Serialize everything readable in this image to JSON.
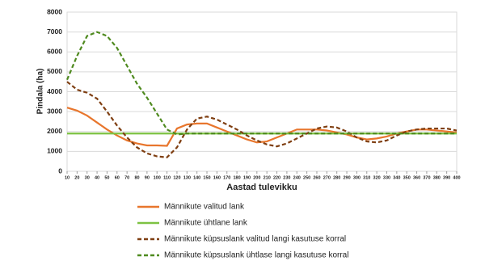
{
  "chart_data": {
    "type": "line",
    "x_label": "Aastad tulevikku",
    "y_label": "Pindala (ha)",
    "x": [
      10,
      20,
      30,
      40,
      50,
      60,
      70,
      80,
      90,
      100,
      110,
      120,
      130,
      140,
      150,
      160,
      170,
      180,
      190,
      200,
      210,
      220,
      230,
      240,
      250,
      260,
      270,
      280,
      290,
      300,
      310,
      320,
      330,
      340,
      350,
      360,
      370,
      380,
      390,
      400
    ],
    "xlim": [
      10,
      400
    ],
    "ylim": [
      0,
      8000
    ],
    "yticks": [
      0,
      1000,
      2000,
      3000,
      4000,
      5000,
      6000,
      7000,
      8000
    ],
    "grid": true,
    "legend": "bottom",
    "series": [
      {
        "name": "Männikute valitud lank",
        "color": "#e8762d",
        "dash": false,
        "values": [
          3200,
          3050,
          2800,
          2450,
          2100,
          1800,
          1550,
          1400,
          1300,
          1300,
          1280,
          2150,
          2350,
          2400,
          2400,
          2200,
          2000,
          1800,
          1600,
          1450,
          1500,
          1700,
          1900,
          2100,
          2100,
          2100,
          2050,
          1950,
          1850,
          1700,
          1600,
          1650,
          1750,
          1900,
          2000,
          2100,
          2100,
          2050,
          2000,
          1950
        ]
      },
      {
        "name": "Männikute ühtlane lank",
        "color": "#7dc242",
        "dash": false,
        "values": [
          1900,
          1900,
          1900,
          1900,
          1900,
          1900,
          1900,
          1900,
          1900,
          1900,
          1900,
          1900,
          1900,
          1900,
          1900,
          1900,
          1900,
          1900,
          1900,
          1900,
          1900,
          1900,
          1900,
          1900,
          1900,
          1900,
          1900,
          1900,
          1900,
          1900,
          1900,
          1900,
          1900,
          1900,
          1900,
          1900,
          1900,
          1900,
          1900,
          1900
        ]
      },
      {
        "name": "Männikute küpsuslank valitud langi kasutuse korral",
        "color": "#7f3f12",
        "dash": true,
        "values": [
          4500,
          4100,
          3950,
          3650,
          3000,
          2300,
          1700,
          1200,
          900,
          750,
          700,
          1200,
          2100,
          2650,
          2750,
          2600,
          2350,
          2100,
          1800,
          1550,
          1350,
          1250,
          1400,
          1650,
          1900,
          2150,
          2250,
          2200,
          2000,
          1700,
          1500,
          1450,
          1550,
          1800,
          2000,
          2100,
          2150,
          2150,
          2150,
          2050
        ]
      },
      {
        "name": "Männikute küpsuslank ühtlase langi kasutuse korral",
        "color": "#4f8a1f",
        "dash": true,
        "values": [
          4600,
          5800,
          6800,
          7000,
          6800,
          6200,
          5300,
          4400,
          3700,
          2900,
          2100,
          1850,
          1900,
          1900,
          1900,
          1900,
          1900,
          1900,
          1900,
          1900,
          1900,
          1900,
          1900,
          1900,
          1900,
          1900,
          1900,
          1900,
          1900,
          1900,
          1900,
          1900,
          1900,
          1900,
          1900,
          1900,
          1900,
          1900,
          1900,
          1900
        ]
      }
    ]
  }
}
